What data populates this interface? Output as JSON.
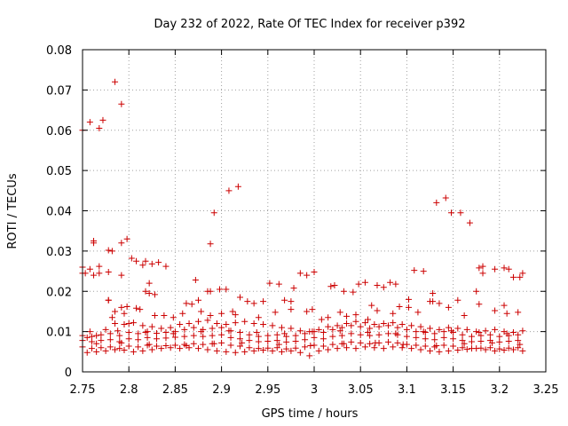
{
  "chart_data": {
    "type": "scatter",
    "title": "Day 232 of 2022, Rate Of TEC Index for receiver p392",
    "xlabel": "GPS time / hours",
    "ylabel": "ROTI / TECUs",
    "xlim": [
      2.75,
      3.25
    ],
    "ylim": [
      0,
      0.08
    ],
    "x_ticks": [
      "2.75",
      "2.8",
      "2.85",
      "2.9",
      "2.95",
      "3",
      "3.05",
      "3.1",
      "3.15",
      "3.2",
      "3.25"
    ],
    "y_ticks": [
      "0",
      "0.01",
      "0.02",
      "0.03",
      "0.04",
      "0.05",
      "0.06",
      "0.07",
      "0.08"
    ],
    "grid": true,
    "marker": "+",
    "color": "#cc0000",
    "series": [
      {
        "name": "p392",
        "x": [
          2.75,
          2.75,
          2.753,
          2.758,
          2.758,
          2.762,
          2.762,
          2.768,
          2.768,
          2.772,
          2.778,
          2.778,
          2.782,
          2.785,
          2.792,
          2.792,
          2.798,
          2.803,
          2.808,
          2.815,
          2.818,
          2.825,
          2.832,
          2.84,
          2.888,
          2.892,
          2.898,
          2.908,
          2.918,
          2.75,
          2.762,
          2.768,
          2.778,
          2.792,
          2.822,
          2.872,
          2.888,
          2.978,
          3.0,
          3.022,
          3.048,
          3.055,
          3.068,
          3.088,
          3.108,
          3.118,
          3.128,
          3.132,
          3.148,
          3.168,
          3.178,
          3.182,
          3.195,
          3.205,
          3.215,
          3.225,
          2.778,
          2.785,
          2.792,
          2.798,
          2.808,
          2.818,
          2.822,
          2.828,
          2.862,
          2.868,
          2.875,
          2.885,
          2.898,
          2.905,
          2.912,
          2.92,
          2.928,
          2.935,
          2.945,
          2.952,
          2.962,
          2.968,
          2.975,
          2.985,
          2.992,
          2.998,
          3.018,
          3.032,
          3.042,
          3.062,
          3.075,
          3.082,
          3.092,
          3.102,
          3.128,
          3.142,
          3.158,
          3.175,
          3.182,
          3.205,
          3.21,
          3.222,
          2.782,
          2.795,
          2.8,
          2.812,
          2.828,
          2.838,
          2.848,
          2.858,
          2.878,
          2.888,
          2.9,
          2.915,
          2.94,
          2.958,
          2.975,
          2.992,
          3.008,
          3.015,
          3.028,
          3.035,
          3.045,
          3.058,
          3.068,
          3.085,
          3.102,
          3.112,
          3.125,
          3.135,
          3.145,
          3.155,
          3.162,
          3.178,
          3.195,
          3.208,
          3.22,
          2.75,
          2.76,
          2.77,
          2.78,
          2.79,
          2.8,
          2.81,
          2.82,
          2.83,
          2.84,
          2.85,
          2.86,
          2.87,
          2.88,
          2.89,
          2.9,
          2.91,
          2.92,
          2.93,
          2.94,
          2.95,
          2.96,
          2.97,
          2.98,
          2.99,
          3.0,
          3.01,
          3.02,
          3.03,
          3.04,
          3.05,
          3.06,
          3.07,
          3.08,
          3.09,
          3.1,
          3.11,
          3.12,
          3.13,
          3.14,
          3.15,
          3.16,
          3.17,
          3.18,
          3.19,
          3.2,
          3.21,
          3.22,
          2.75,
          2.76,
          2.77,
          2.78,
          2.79,
          2.8,
          2.81,
          2.82,
          2.83,
          2.84,
          2.85,
          2.86,
          2.87,
          2.88,
          2.89,
          2.9,
          2.91,
          2.92,
          2.93,
          2.94,
          2.95,
          2.96,
          2.97,
          2.98,
          2.99,
          3.0,
          3.01,
          3.02,
          3.03,
          3.04,
          3.05,
          3.06,
          3.07,
          3.08,
          3.09,
          3.1,
          3.11,
          3.12,
          3.13,
          3.14,
          3.15,
          3.16,
          3.17,
          3.18,
          3.19,
          3.2,
          3.21,
          3.22,
          2.75,
          2.76,
          2.77,
          2.78,
          2.79,
          2.8,
          2.81,
          2.82,
          2.83,
          2.84,
          2.85,
          2.86,
          2.87,
          2.88,
          2.89,
          2.9,
          2.91,
          2.92,
          2.93,
          2.94,
          2.95,
          2.96,
          2.97,
          2.98,
          2.99,
          3.0,
          3.01,
          3.02,
          3.03,
          3.04,
          3.05,
          3.06,
          3.07,
          3.08,
          3.09,
          3.1,
          3.11,
          3.12,
          3.13,
          3.14,
          3.15,
          3.16,
          3.17,
          3.18,
          3.19,
          3.2,
          3.21,
          3.22,
          2.755,
          2.765,
          2.775,
          2.785,
          2.795,
          2.805,
          2.815,
          2.825,
          2.835,
          2.845,
          2.855,
          2.865,
          2.875,
          2.885,
          2.895,
          2.905,
          2.915,
          2.925,
          2.935,
          2.945,
          2.955,
          2.965,
          2.975,
          2.985,
          2.995,
          3.005,
          3.015,
          3.025,
          3.035,
          3.045,
          3.055,
          3.065,
          3.075,
          3.085,
          3.095,
          3.105,
          3.115,
          3.125,
          3.135,
          3.145,
          3.155,
          3.165,
          3.175,
          3.185,
          3.195,
          3.205,
          3.215,
          3.225,
          2.755,
          2.765,
          2.775,
          2.785,
          2.795,
          2.805,
          2.815,
          2.825,
          2.835,
          2.845,
          2.855,
          2.865,
          2.875,
          2.885,
          2.895,
          2.905,
          2.915,
          2.925,
          2.935,
          2.945,
          2.955,
          2.965,
          2.975,
          2.985,
          2.995,
          3.005,
          3.015,
          3.025,
          3.035,
          3.045,
          3.055,
          3.065,
          3.075,
          3.085,
          3.095,
          3.105,
          3.115,
          3.125,
          3.135,
          3.145,
          3.155,
          3.165,
          3.175,
          3.185,
          3.195,
          3.205,
          3.215,
          3.225,
          2.765,
          2.792,
          2.822,
          2.862,
          2.892,
          2.922,
          2.962,
          2.996,
          3.032,
          3.066,
          3.096,
          3.132,
          3.162,
          3.192,
          3.222,
          2.758,
          2.788,
          2.818,
          2.848,
          2.878,
          2.908,
          2.938,
          2.968,
          2.998,
          3.028,
          3.058,
          3.088,
          3.118,
          3.148,
          3.178,
          3.208
        ],
        "y": [
          0.06,
          0.026,
          0.0245,
          0.062,
          0.0255,
          0.0325,
          0.032,
          0.0605,
          0.0262,
          0.0625,
          0.0302,
          0.0178,
          0.03,
          0.072,
          0.032,
          0.0665,
          0.033,
          0.0282,
          0.0275,
          0.0265,
          0.0275,
          0.0268,
          0.0272,
          0.0262,
          0.0318,
          0.0395,
          0.0205,
          0.045,
          0.046,
          0.0245,
          0.024,
          0.0245,
          0.0248,
          0.024,
          0.022,
          0.0228,
          0.02,
          0.0208,
          0.0248,
          0.0215,
          0.0218,
          0.0222,
          0.0215,
          0.0218,
          0.0252,
          0.025,
          0.0195,
          0.042,
          0.0395,
          0.037,
          0.0258,
          0.0262,
          0.0255,
          0.0258,
          0.0235,
          0.0245,
          0.0178,
          0.015,
          0.016,
          0.0162,
          0.0158,
          0.02,
          0.0195,
          0.0192,
          0.017,
          0.0168,
          0.0178,
          0.02,
          0.0205,
          0.0205,
          0.015,
          0.0185,
          0.0175,
          0.017,
          0.0175,
          0.022,
          0.0218,
          0.0178,
          0.0175,
          0.0245,
          0.024,
          0.0155,
          0.0212,
          0.02,
          0.0198,
          0.0165,
          0.021,
          0.0222,
          0.0162,
          0.018,
          0.0175,
          0.0432,
          0.0395,
          0.02,
          0.0245,
          0.0165,
          0.0255,
          0.0235,
          0.0135,
          0.0145,
          0.012,
          0.0155,
          0.014,
          0.014,
          0.0135,
          0.0145,
          0.015,
          0.014,
          0.0145,
          0.0142,
          0.0135,
          0.0148,
          0.0155,
          0.015,
          0.013,
          0.0135,
          0.0148,
          0.0138,
          0.0142,
          0.013,
          0.0152,
          0.0145,
          0.016,
          0.0148,
          0.0175,
          0.017,
          0.016,
          0.0178,
          0.014,
          0.0168,
          0.0152,
          0.0145,
          0.0148,
          0.009,
          0.0088,
          0.0092,
          0.0095,
          0.009,
          0.0098,
          0.0095,
          0.01,
          0.0096,
          0.0098,
          0.01,
          0.0105,
          0.011,
          0.0105,
          0.0108,
          0.011,
          0.0102,
          0.0098,
          0.0092,
          0.0088,
          0.009,
          0.0092,
          0.0088,
          0.009,
          0.0095,
          0.01,
          0.0098,
          0.0105,
          0.011,
          0.0115,
          0.0112,
          0.0108,
          0.0112,
          0.0115,
          0.011,
          0.0105,
          0.01,
          0.0098,
          0.0095,
          0.01,
          0.0098,
          0.0092,
          0.0088,
          0.009,
          0.0092,
          0.0088,
          0.009,
          0.0092,
          0.0078,
          0.0075,
          0.0078,
          0.008,
          0.0075,
          0.0082,
          0.008,
          0.0085,
          0.0082,
          0.0084,
          0.0086,
          0.0088,
          0.009,
          0.0088,
          0.009,
          0.0092,
          0.0085,
          0.0082,
          0.0078,
          0.0075,
          0.0076,
          0.0078,
          0.0074,
          0.0076,
          0.008,
          0.0085,
          0.0082,
          0.0088,
          0.009,
          0.0095,
          0.0092,
          0.009,
          0.0092,
          0.0095,
          0.0092,
          0.0088,
          0.0085,
          0.0082,
          0.008,
          0.0085,
          0.0082,
          0.0078,
          0.0075,
          0.0076,
          0.0078,
          0.0074,
          0.0076,
          0.0078,
          0.0062,
          0.0058,
          0.006,
          0.0062,
          0.0058,
          0.0064,
          0.0062,
          0.0066,
          0.0064,
          0.0065,
          0.0066,
          0.0068,
          0.007,
          0.0068,
          0.007,
          0.0072,
          0.0066,
          0.0064,
          0.006,
          0.0058,
          0.0059,
          0.006,
          0.0057,
          0.0059,
          0.0062,
          0.0066,
          0.0064,
          0.0068,
          0.007,
          0.0074,
          0.0072,
          0.007,
          0.0072,
          0.0074,
          0.0072,
          0.0068,
          0.0066,
          0.0064,
          0.0062,
          0.0066,
          0.0064,
          0.006,
          0.0058,
          0.0059,
          0.006,
          0.0057,
          0.0059,
          0.006,
          0.0048,
          0.005,
          0.0052,
          0.0055,
          0.0054,
          0.005,
          0.0052,
          0.0055,
          0.0058,
          0.006,
          0.0058,
          0.006,
          0.0058,
          0.0055,
          0.0052,
          0.005,
          0.0048,
          0.005,
          0.0052,
          0.0054,
          0.0052,
          0.005,
          0.0052,
          0.0048,
          0.004,
          0.0052,
          0.0055,
          0.0058,
          0.006,
          0.0058,
          0.0062,
          0.006,
          0.0058,
          0.0062,
          0.006,
          0.0058,
          0.0055,
          0.0052,
          0.005,
          0.0052,
          0.0054,
          0.0056,
          0.0058,
          0.0055,
          0.0052,
          0.0054,
          0.0055,
          0.0052,
          0.0085,
          0.009,
          0.0105,
          0.012,
          0.0118,
          0.0122,
          0.0115,
          0.0112,
          0.0108,
          0.011,
          0.0118,
          0.012,
          0.0125,
          0.0128,
          0.012,
          0.0118,
          0.0122,
          0.0125,
          0.012,
          0.0118,
          0.0115,
          0.011,
          0.0108,
          0.0102,
          0.01,
          0.0105,
          0.0112,
          0.0115,
          0.012,
          0.0125,
          0.0122,
          0.0118,
          0.012,
          0.0122,
          0.0118,
          0.0115,
          0.0112,
          0.0108,
          0.0105,
          0.011,
          0.0108,
          0.0105,
          0.01,
          0.0102,
          0.0105,
          0.01,
          0.0098,
          0.0102,
          0.007,
          0.0072,
          0.0068,
          0.0065,
          0.007,
          0.0072,
          0.0068,
          0.0065,
          0.007,
          0.0072,
          0.0068,
          0.0065,
          0.007,
          0.0072,
          0.0068,
          0.01,
          0.0102,
          0.0098,
          0.0095,
          0.01,
          0.0102,
          0.0098,
          0.0095,
          0.01,
          0.0102,
          0.0098,
          0.0095,
          0.01,
          0.0102,
          0.0098,
          0.0095
        ]
      }
    ]
  }
}
